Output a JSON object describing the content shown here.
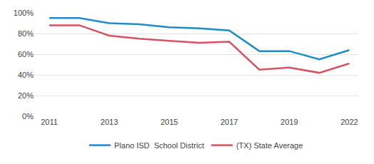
{
  "chart_data": {
    "type": "line",
    "categories": [
      "2011",
      null,
      "2013",
      null,
      "2015",
      null,
      "2017",
      null,
      "2019",
      null,
      "2022"
    ],
    "series": [
      {
        "name": "Plano ISD  School District",
        "color": "#1f8dc4",
        "values": [
          95,
          95,
          90,
          89,
          86,
          85,
          83,
          63,
          63,
          55,
          64
        ]
      },
      {
        "name": "(TX) State Average",
        "color": "#d45460",
        "values": [
          88,
          88,
          78,
          75,
          73,
          71,
          72,
          45,
          47,
          42,
          51
        ]
      }
    ],
    "ylim": [
      0,
      100
    ],
    "yticks": [
      {
        "value": 0,
        "label": "0%"
      },
      {
        "value": 20,
        "label": "20%"
      },
      {
        "value": 40,
        "label": "40%"
      },
      {
        "value": 60,
        "label": "60%"
      },
      {
        "value": 80,
        "label": "80%"
      },
      {
        "value": 100,
        "label": "100%"
      }
    ],
    "grid": true,
    "legend": "bottom"
  }
}
